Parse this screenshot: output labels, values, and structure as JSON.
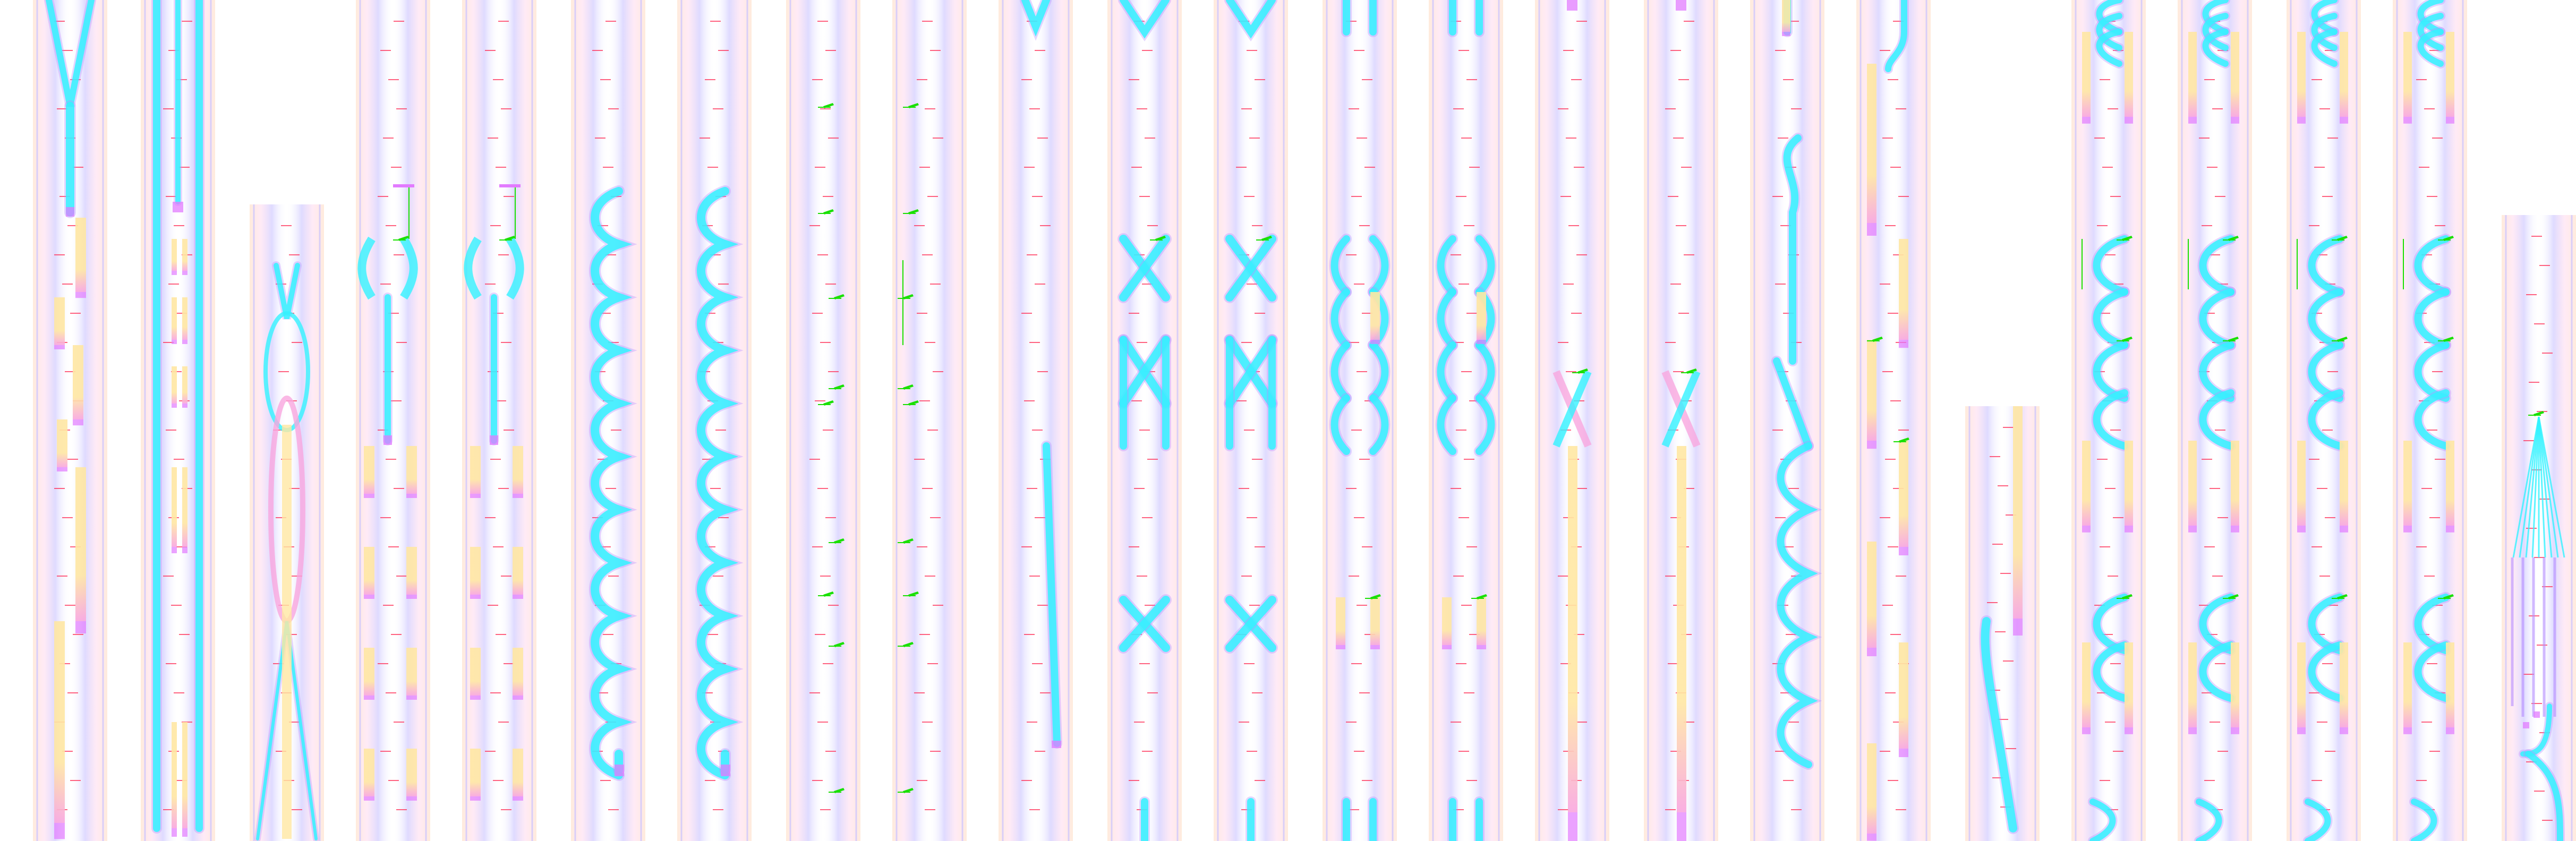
{
  "palette": {
    "background": "#ffffff",
    "guide_violet": "#c9c2ff",
    "guide_pink": "#ffd6ec",
    "guide_peach": "#ffe3cc",
    "waveguide_cyan": "#33f3ff",
    "waveguide_violet": "#b48cff",
    "taper_yellow": "#ffe7a3",
    "taper_pink": "#f9a6df",
    "pad_magenta": "#e27bff",
    "marker_green": "#19e000",
    "label_red": "#ff2d55"
  },
  "columns": [
    {
      "id": 1,
      "kind": "y-split-tapers"
    },
    {
      "id": 2,
      "kind": "straight-bus"
    },
    {
      "id": 3,
      "kind": "lattice-crossing"
    },
    {
      "id": 4,
      "kind": "single-ring-tapers"
    },
    {
      "id": 5,
      "kind": "single-ring-tapers"
    },
    {
      "id": 6,
      "kind": "serpentine-bends"
    },
    {
      "id": 7,
      "kind": "serpentine-bends"
    },
    {
      "id": 8,
      "kind": "label-grid"
    },
    {
      "id": 9,
      "kind": "label-grid"
    },
    {
      "id": 10,
      "kind": "angled-guide"
    },
    {
      "id": 11,
      "kind": "x-couplers"
    },
    {
      "id": 12,
      "kind": "x-couplers"
    },
    {
      "id": 13,
      "kind": "arch-couplers"
    },
    {
      "id": 14,
      "kind": "arch-couplers"
    },
    {
      "id": 15,
      "kind": "crossing-taper"
    },
    {
      "id": 16,
      "kind": "crossing-taper"
    },
    {
      "id": 17,
      "kind": "s-bend-chain"
    },
    {
      "id": 18,
      "kind": "s-bend-tapers"
    },
    {
      "id": 19,
      "kind": "diagonal-guide"
    },
    {
      "id": 20,
      "kind": "ring-array"
    },
    {
      "id": 21,
      "kind": "ring-array"
    },
    {
      "id": 22,
      "kind": "ring-array"
    },
    {
      "id": 23,
      "kind": "ring-array"
    },
    {
      "id": 24,
      "kind": "fan-out"
    }
  ],
  "legend_icons": [
    "waveguide-icon",
    "taper-icon",
    "pad-icon",
    "marker-icon",
    "label-tick-icon"
  ]
}
